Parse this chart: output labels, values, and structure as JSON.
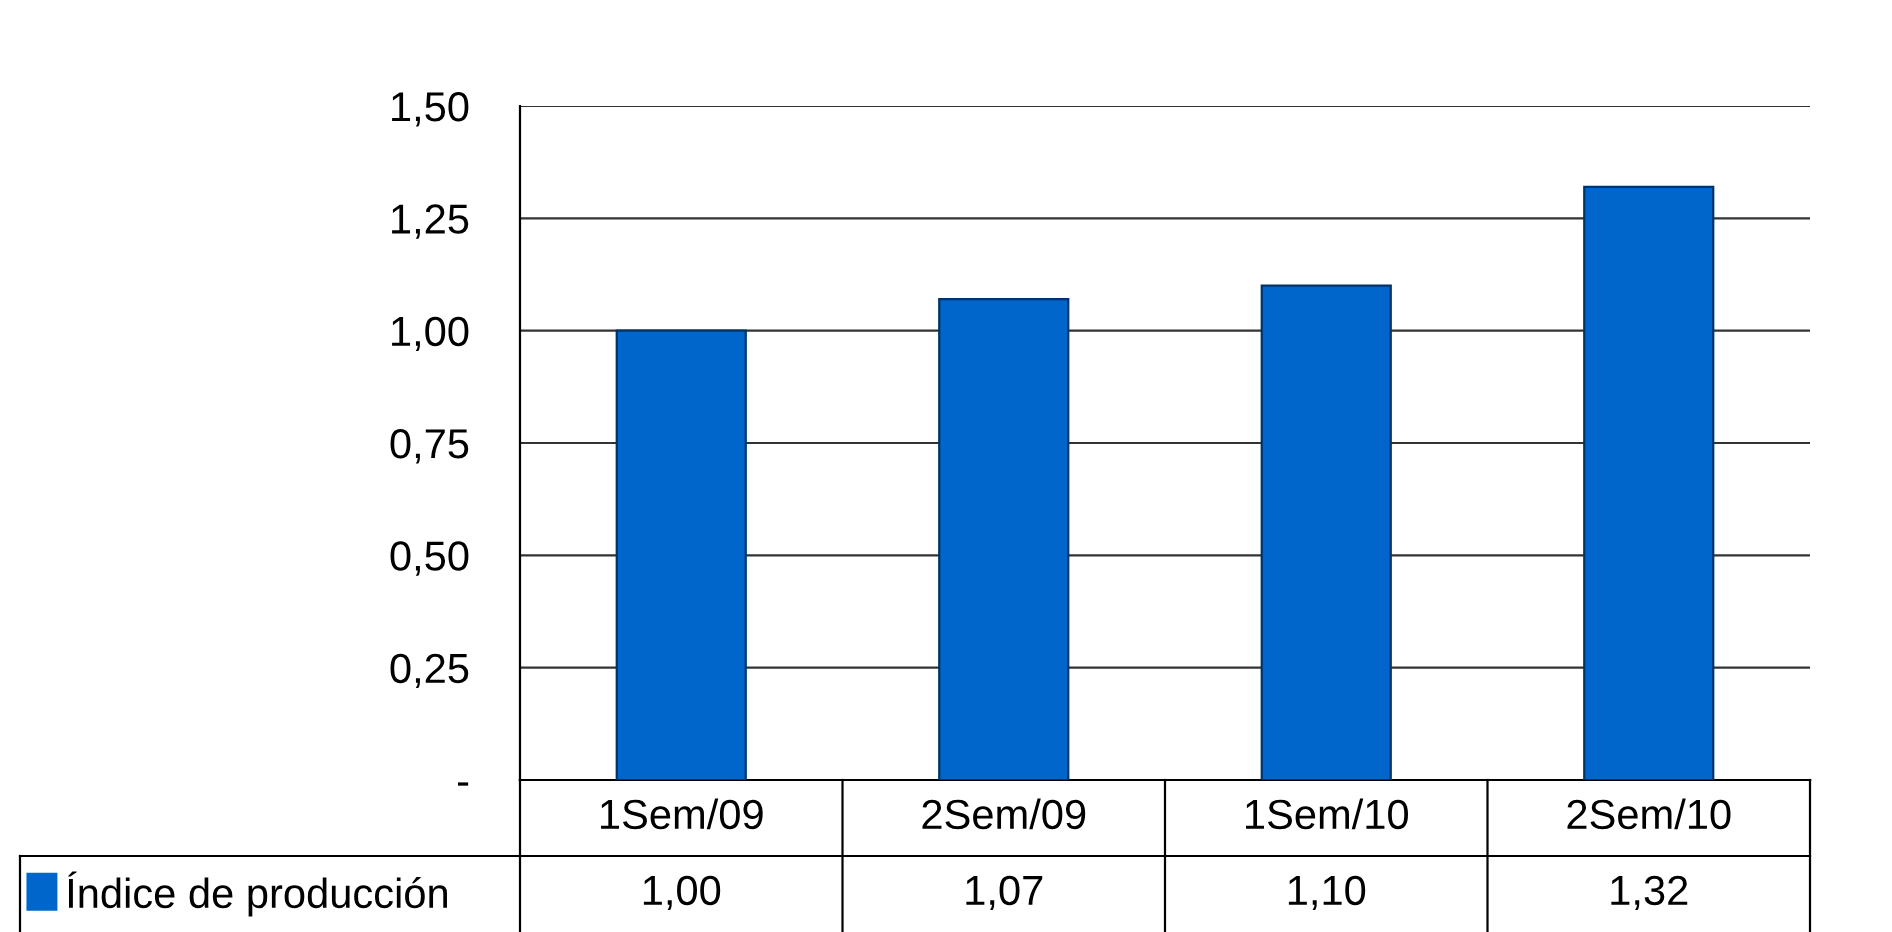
{
  "chart_data": {
    "type": "bar",
    "categories": [
      "1Sem/09",
      "2Sem/09",
      "1Sem/10",
      "2Sem/10"
    ],
    "series": [
      {
        "name": "Índice de producción",
        "color": "#0066cc",
        "values": [
          1.0,
          1.07,
          1.1,
          1.32
        ]
      }
    ],
    "value_labels": [
      "1,00",
      "1,07",
      "1,10",
      "1,32"
    ],
    "ylim": [
      0,
      1.5
    ],
    "yticks": [
      {
        "value": 0,
        "label": "-"
      },
      {
        "value": 0.25,
        "label": "0,25"
      },
      {
        "value": 0.5,
        "label": "0,50"
      },
      {
        "value": 0.75,
        "label": "0,75"
      },
      {
        "value": 1.0,
        "label": "1,00"
      },
      {
        "value": 1.25,
        "label": "1,25"
      },
      {
        "value": 1.5,
        "label": "1,50"
      }
    ],
    "grid": "y",
    "legend": "bottom left"
  }
}
